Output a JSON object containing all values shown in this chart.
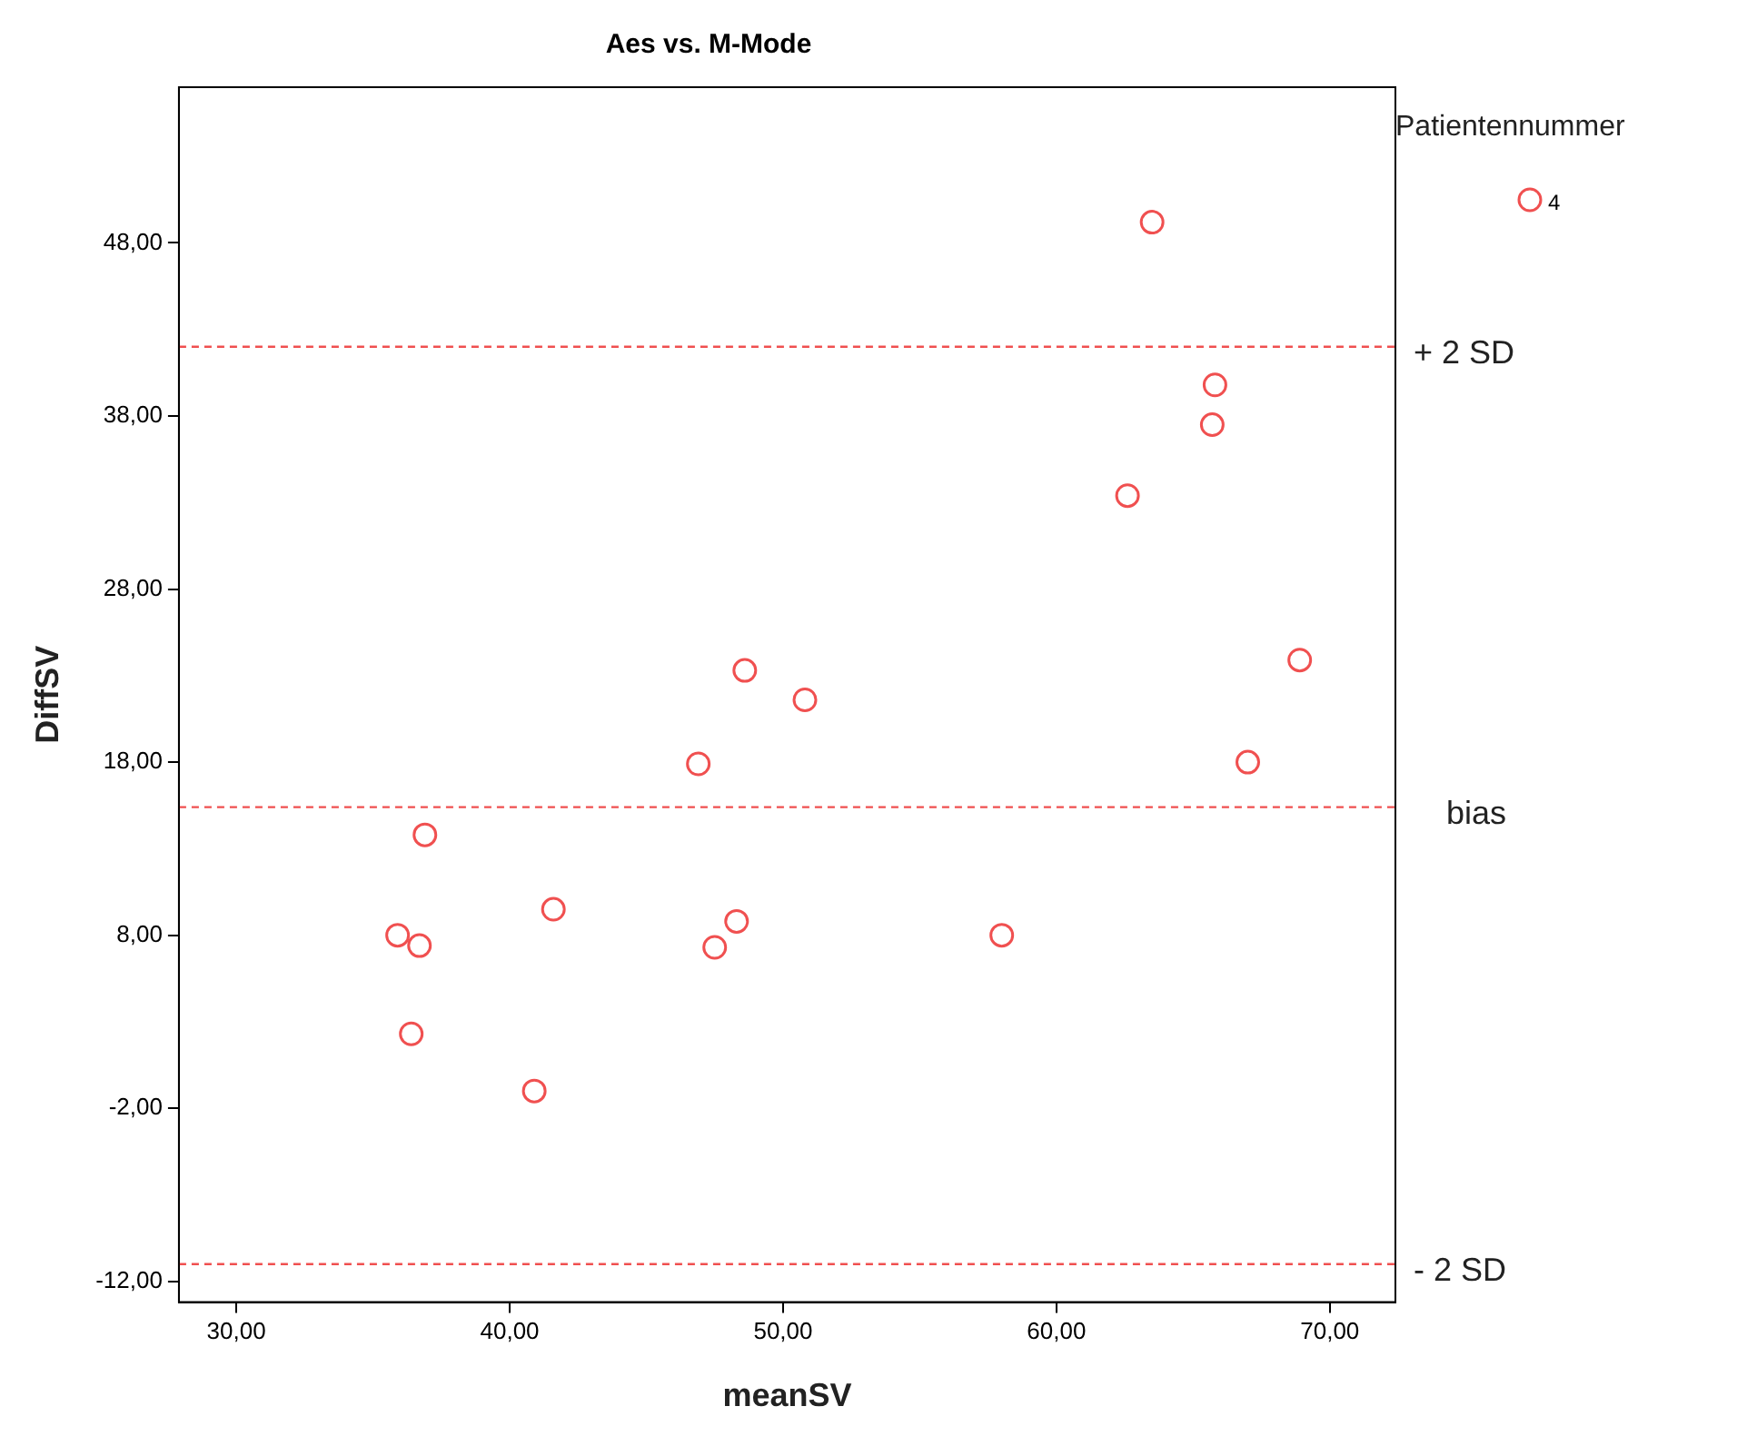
{
  "chart_data": {
    "type": "scatter",
    "title": "Aes vs. M-Mode",
    "xlabel": "meanSV",
    "ylabel": "DiffSV",
    "legend_title": "Patientennummer",
    "legend": "top right",
    "marker": "circle",
    "grid": false,
    "x": [
      63.5,
      65.8,
      65.7,
      62.6,
      68.9,
      48.6,
      50.8,
      46.9,
      67.0,
      36.9,
      41.6,
      48.3,
      47.5,
      35.9,
      36.7,
      58.0,
      36.4,
      40.9
    ],
    "series": [
      {
        "name": "4",
        "color": "#f05050",
        "values": [
          49.2,
          39.8,
          37.5,
          33.4,
          23.9,
          23.3,
          21.6,
          17.9,
          18.0,
          13.8,
          9.5,
          8.8,
          7.3,
          8.0,
          7.4,
          8.0,
          2.3,
          -1.0
        ]
      }
    ],
    "xlim": [
      27.9,
      72.4
    ],
    "ylim": [
      -13.2,
      57.0
    ],
    "xticks": [
      {
        "value": 30,
        "label": "30,00"
      },
      {
        "value": 40,
        "label": "40,00"
      },
      {
        "value": 50,
        "label": "50,00"
      },
      {
        "value": 60,
        "label": "60,00"
      },
      {
        "value": 70,
        "label": "70,00"
      }
    ],
    "yticks": [
      {
        "value": -12,
        "label": "-12,00"
      },
      {
        "value": -2,
        "label": "-2,00"
      },
      {
        "value": 8,
        "label": "8,00"
      },
      {
        "value": 18,
        "label": "18,00"
      },
      {
        "value": 28,
        "label": "28,00"
      },
      {
        "value": 38,
        "label": "38,00"
      },
      {
        "value": 48,
        "label": "48,00"
      }
    ],
    "ref_lines": [
      {
        "axis": "y",
        "value": 42.0,
        "label": "+ 2 SD",
        "color": "#f05050",
        "line_style": "dashed"
      },
      {
        "axis": "y",
        "value": 15.4,
        "label": "bias",
        "color": "#f05050",
        "line_style": "dashed"
      },
      {
        "axis": "y",
        "value": -11.0,
        "label": "- 2 SD",
        "color": "#f05050",
        "line_style": "dashed"
      }
    ]
  }
}
